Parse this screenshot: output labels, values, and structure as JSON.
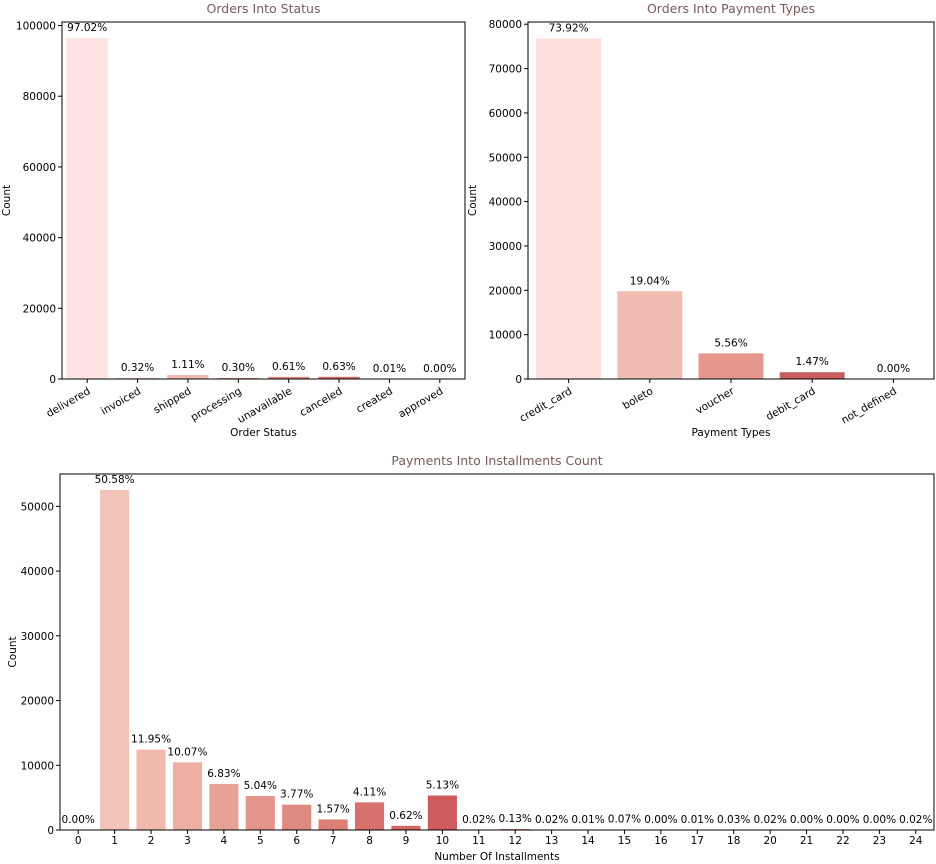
{
  "chart_data": [
    {
      "type": "bar",
      "title": "Orders Into Status",
      "xlabel": "Order Status",
      "ylabel": "Count",
      "categories": [
        "delivered",
        "invoiced",
        "shipped",
        "processing",
        "unavailable",
        "canceled",
        "created",
        "approved"
      ],
      "values": [
        96478,
        314,
        1107,
        301,
        609,
        625,
        5,
        2
      ],
      "labels": [
        "97.02%",
        "0.32%",
        "1.11%",
        "0.30%",
        "0.61%",
        "0.63%",
        "0.01%",
        "0.00%"
      ],
      "colors": [
        "#fde4e2",
        "#f6cfc7",
        "#efb7ad",
        "#e8a094",
        "#de8680",
        "#d06b6b",
        "#c45a5a",
        "#b84a4a"
      ],
      "ylim": [
        0,
        101000
      ],
      "yticks": [
        0,
        20000,
        40000,
        60000,
        80000,
        100000
      ],
      "grid": false
    },
    {
      "type": "bar",
      "title": "Orders Into Payment Types",
      "xlabel": "Payment Types",
      "ylabel": "Count",
      "categories": [
        "credit_card",
        "boleto",
        "voucher",
        "debit_card",
        "not_defined"
      ],
      "values": [
        76795,
        19784,
        5775,
        1529,
        3
      ],
      "labels": [
        "73.92%",
        "19.04%",
        "5.56%",
        "1.47%",
        "0.00%"
      ],
      "colors": [
        "#fde0dd",
        "#efbdb2",
        "#e5978e",
        "#c95c5c",
        "#b84a4a"
      ],
      "ylim": [
        0,
        80500
      ],
      "yticks": [
        0,
        10000,
        20000,
        30000,
        40000,
        50000,
        60000,
        70000,
        80000
      ],
      "grid": false
    },
    {
      "type": "bar",
      "title": "Payments Into Installments Count",
      "xlabel": "Number Of Installments",
      "ylabel": "Count",
      "categories": [
        "0",
        "1",
        "2",
        "3",
        "4",
        "5",
        "6",
        "7",
        "8",
        "9",
        "10",
        "11",
        "12",
        "13",
        "14",
        "15",
        "16",
        "17",
        "18",
        "20",
        "21",
        "22",
        "23",
        "24"
      ],
      "values": [
        2,
        52546,
        12413,
        10461,
        7098,
        5239,
        3920,
        1626,
        4268,
        644,
        5328,
        23,
        133,
        16,
        15,
        74,
        5,
        8,
        27,
        17,
        3,
        1,
        1,
        18
      ],
      "labels": [
        "0.00%",
        "50.58%",
        "11.95%",
        "10.07%",
        "6.83%",
        "5.04%",
        "3.77%",
        "1.57%",
        "4.11%",
        "0.62%",
        "5.13%",
        "0.02%",
        "0.13%",
        "0.02%",
        "0.01%",
        "0.07%",
        "0.00%",
        "0.01%",
        "0.03%",
        "0.02%",
        "0.00%",
        "0.00%",
        "0.00%",
        "0.02%"
      ],
      "colors": [
        "#f7d0c8",
        "#f2c3b8",
        "#efb9ae",
        "#ebb0a3",
        "#e7a297",
        "#e3958a",
        "#df8a80",
        "#db7e76",
        "#d7716d",
        "#d36665",
        "#cf5c5d",
        "#cb5558",
        "#c64f52",
        "#c2494d",
        "#be4548",
        "#ba4144",
        "#b63d40",
        "#b2393c",
        "#ae3538",
        "#aa3134",
        "#a62d30",
        "#a2292c",
        "#9e2528",
        "#9a2124"
      ],
      "ylim": [
        0,
        55000
      ],
      "yticks": [
        0,
        10000,
        20000,
        30000,
        40000,
        50000
      ],
      "grid": false
    }
  ]
}
